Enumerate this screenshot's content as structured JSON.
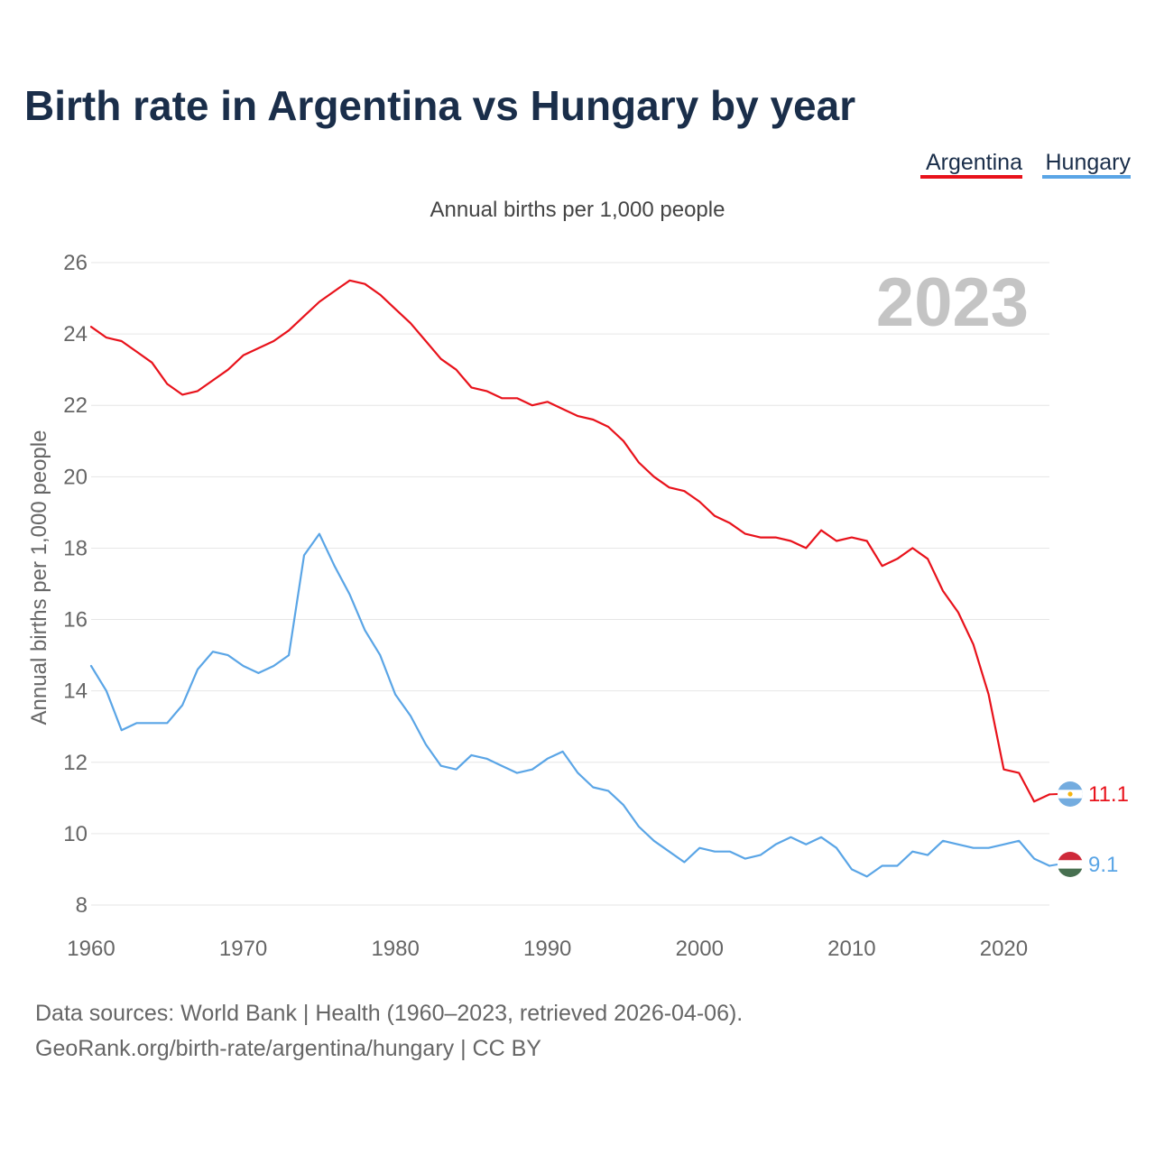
{
  "chart_data": {
    "type": "line",
    "title": "Birth rate in Argentina vs Hungary by year",
    "subtitle": "Annual births per 1,000 people",
    "ylabel": "Annual births per 1,000 people",
    "xlabel": "",
    "year_label": "2023",
    "xlim": [
      1960,
      2023
    ],
    "ylim": [
      8,
      26
    ],
    "yticks": [
      8,
      10,
      12,
      14,
      16,
      18,
      20,
      22,
      24,
      26
    ],
    "xticks": [
      1960,
      1970,
      1980,
      1990,
      2000,
      2010,
      2020
    ],
    "grid": true,
    "legend_position": "top-right",
    "x": [
      1960,
      1961,
      1962,
      1963,
      1964,
      1965,
      1966,
      1967,
      1968,
      1969,
      1970,
      1971,
      1972,
      1973,
      1974,
      1975,
      1976,
      1977,
      1978,
      1979,
      1980,
      1981,
      1982,
      1983,
      1984,
      1985,
      1986,
      1987,
      1988,
      1989,
      1990,
      1991,
      1992,
      1993,
      1994,
      1995,
      1996,
      1997,
      1998,
      1999,
      2000,
      2001,
      2002,
      2003,
      2004,
      2005,
      2006,
      2007,
      2008,
      2009,
      2010,
      2011,
      2012,
      2013,
      2014,
      2015,
      2016,
      2017,
      2018,
      2019,
      2020,
      2021,
      2022,
      2023
    ],
    "series": [
      {
        "name": "Argentina",
        "color": "#e8121b",
        "end_label": "11.1",
        "values": [
          24.2,
          23.9,
          23.8,
          23.5,
          23.2,
          22.6,
          22.3,
          22.4,
          22.7,
          23.0,
          23.4,
          23.6,
          23.8,
          24.1,
          24.5,
          24.9,
          25.2,
          25.5,
          25.4,
          25.1,
          24.7,
          24.3,
          23.8,
          23.3,
          23.0,
          22.5,
          22.4,
          22.2,
          22.2,
          22.0,
          22.1,
          21.9,
          21.7,
          21.6,
          21.4,
          21.0,
          20.4,
          20.0,
          19.7,
          19.6,
          19.3,
          18.9,
          18.7,
          18.4,
          18.3,
          18.3,
          18.2,
          18.0,
          18.5,
          18.2,
          18.3,
          18.2,
          17.5,
          17.7,
          18.0,
          17.7,
          16.8,
          16.2,
          15.3,
          13.9,
          11.8,
          11.7,
          10.9,
          11.1
        ]
      },
      {
        "name": "Hungary",
        "color": "#5aa5e6",
        "end_label": "9.1",
        "values": [
          14.7,
          14.0,
          12.9,
          13.1,
          13.1,
          13.1,
          13.6,
          14.6,
          15.1,
          15.0,
          14.7,
          14.5,
          14.7,
          15.0,
          17.8,
          18.4,
          17.5,
          16.7,
          15.7,
          15.0,
          13.9,
          13.3,
          12.5,
          11.9,
          11.8,
          12.2,
          12.1,
          11.9,
          11.7,
          11.8,
          12.1,
          12.3,
          11.7,
          11.3,
          11.2,
          10.8,
          10.2,
          9.8,
          9.5,
          9.2,
          9.6,
          9.5,
          9.5,
          9.3,
          9.4,
          9.7,
          9.9,
          9.7,
          9.9,
          9.6,
          9.0,
          8.8,
          9.1,
          9.1,
          9.5,
          9.4,
          9.8,
          9.7,
          9.6,
          9.6,
          9.7,
          9.8,
          9.3,
          9.1
        ]
      }
    ]
  },
  "legend": {
    "items": [
      {
        "label": "Argentina",
        "color": "#e8121b"
      },
      {
        "label": "Hungary",
        "color": "#5aa5e6"
      }
    ]
  },
  "flags": {
    "argentina_icon": "argentina-flag-icon",
    "hungary_icon": "hungary-flag-icon"
  },
  "footer": {
    "line1": "Data sources: World Bank | Health (1960–2023, retrieved 2026-04-06).",
    "line2": "GeoRank.org/birth-rate/argentina/hungary | CC BY"
  }
}
